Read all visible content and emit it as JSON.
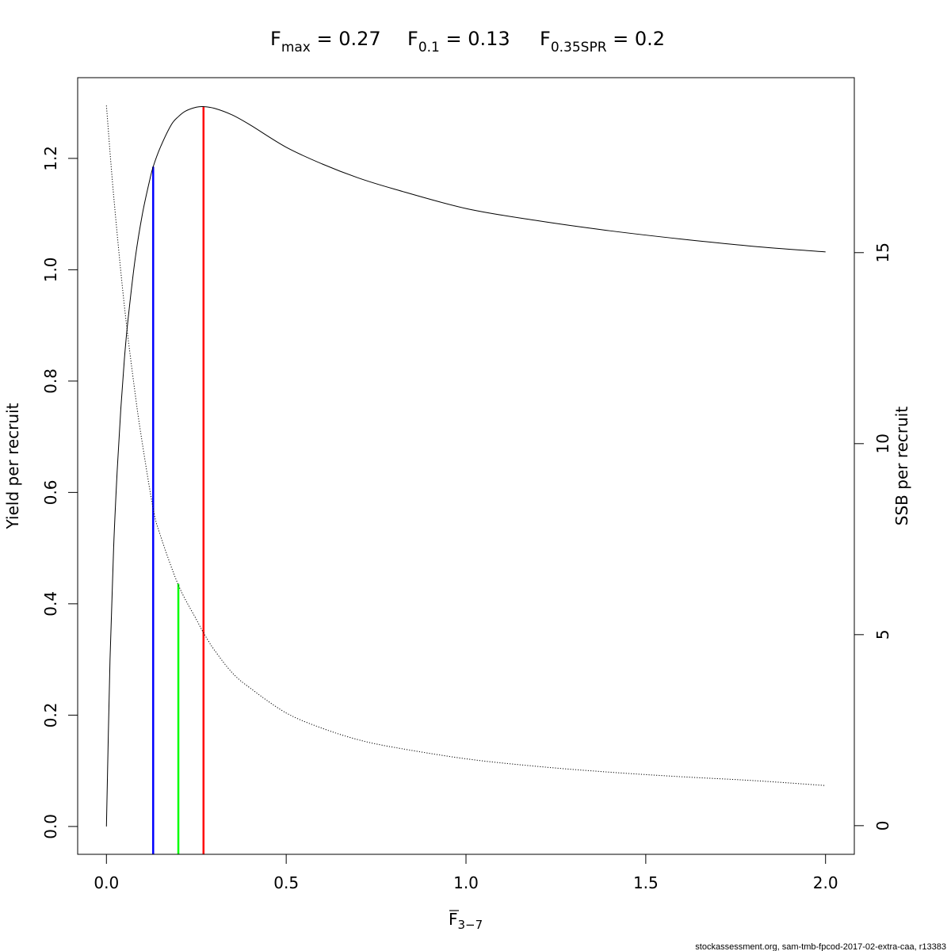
{
  "chart_data": {
    "type": "line",
    "title_parts": [
      {
        "main": "F",
        "sub": "max",
        "rest": " = 0.27"
      },
      {
        "main": "F",
        "sub": "0.1",
        "rest": " = 0.13"
      },
      {
        "main": "F",
        "sub": "0.35SPR",
        "rest": " = 0.2"
      }
    ],
    "xlabel": {
      "main": "F",
      "sub": "3−7"
    },
    "ylabel": "Yield per recruit",
    "y2label": "SSB per recruit",
    "credit": "stockassessment.org, sam-tmb-fpcod-2017-02-extra-caa, r13383",
    "xlim": [
      -0.08,
      2.08
    ],
    "ylim": [
      -0.05,
      1.345
    ],
    "y2lim": [
      -0.75,
      19.58
    ],
    "x_ticks": [
      "0.0",
      "0.5",
      "1.0",
      "1.5",
      "2.0"
    ],
    "y_ticks": [
      "0.0",
      "0.2",
      "0.4",
      "0.6",
      "0.8",
      "1.0",
      "1.2"
    ],
    "y2_ticks": [
      "0",
      "5",
      "10",
      "15"
    ],
    "series": [
      {
        "axis": "left",
        "style": "solid",
        "color": "#000000",
        "x": [
          0,
          0.01,
          0.02,
          0.03,
          0.04,
          0.05,
          0.06,
          0.08,
          0.1,
          0.12,
          0.13,
          0.15,
          0.18,
          0.2,
          0.22,
          0.25,
          0.27,
          0.3,
          0.35,
          0.4,
          0.5,
          0.6,
          0.7,
          0.8,
          1.0,
          1.2,
          1.4,
          1.6,
          1.8,
          2.0
        ],
        "values": [
          0,
          0.3,
          0.5,
          0.64,
          0.75,
          0.84,
          0.91,
          1.02,
          1.1,
          1.16,
          1.185,
          1.22,
          1.26,
          1.275,
          1.285,
          1.292,
          1.293,
          1.29,
          1.278,
          1.26,
          1.22,
          1.19,
          1.165,
          1.145,
          1.11,
          1.088,
          1.07,
          1.055,
          1.042,
          1.032
        ]
      },
      {
        "axis": "right",
        "style": "dotted",
        "color": "#000000",
        "x": [
          0,
          0.02,
          0.05,
          0.08,
          0.1,
          0.13,
          0.15,
          0.2,
          0.25,
          0.27,
          0.3,
          0.35,
          0.4,
          0.5,
          0.6,
          0.7,
          0.8,
          1.0,
          1.2,
          1.4,
          1.6,
          1.8,
          2.0
        ],
        "values": [
          18.85,
          16.5,
          13.6,
          11.3,
          10.0,
          8.3,
          7.6,
          6.3,
          5.4,
          5.05,
          4.6,
          4.0,
          3.6,
          2.95,
          2.55,
          2.25,
          2.05,
          1.75,
          1.55,
          1.4,
          1.28,
          1.18,
          1.05
        ]
      }
    ],
    "reference_lines": [
      {
        "label": "F0.1",
        "x": 0.13,
        "y_top": 1.185,
        "color": "#0000FF"
      },
      {
        "label": "F0.35SPR",
        "x": 0.2,
        "y_top": 0.436,
        "color": "#00FF00"
      },
      {
        "label": "Fmax",
        "x": 0.27,
        "y_top": 1.293,
        "color": "#FF0000"
      }
    ]
  }
}
